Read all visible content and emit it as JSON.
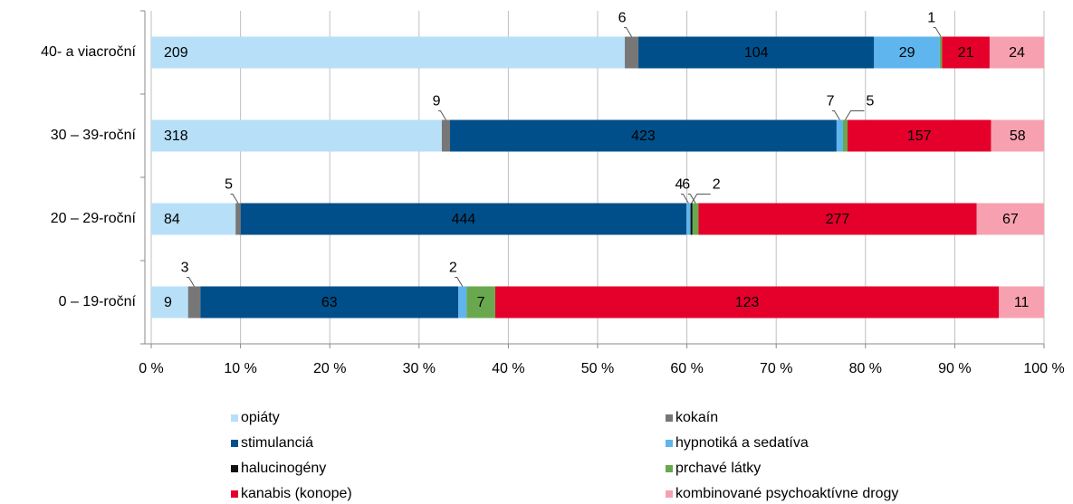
{
  "chart_data": {
    "type": "bar100h",
    "categories": [
      "40- a viacroční",
      "30 – 39-roční",
      "20 – 29-roční",
      "0 – 19-roční"
    ],
    "series": [
      {
        "name": "opiáty",
        "color": "#b7dff8",
        "values": [
          209,
          318,
          84,
          9
        ]
      },
      {
        "name": "kokaín",
        "color": "#777777",
        "values": [
          6,
          9,
          5,
          3
        ]
      },
      {
        "name": "stimulanciá",
        "color": "#004f8a",
        "values": [
          104,
          423,
          444,
          63
        ]
      },
      {
        "name": "hypnotiká a sedatíva",
        "color": "#5fb5ee",
        "values": [
          29,
          7,
          4,
          2
        ]
      },
      {
        "name": "halucinogény",
        "color": "#111111",
        "values": [
          null,
          null,
          2,
          null
        ]
      },
      {
        "name": "prchavé látky",
        "color": "#6aa84f",
        "values": [
          1,
          5,
          6,
          7
        ]
      },
      {
        "name": "kanabis (konope)",
        "color": "#e4002b",
        "values": [
          21,
          157,
          277,
          123
        ]
      },
      {
        "name": "kombinované psychoaktívne drogy",
        "color": "#f7a1b0",
        "values": [
          24,
          58,
          67,
          11
        ]
      }
    ],
    "xlim": [
      0,
      100
    ],
    "xticks": [
      {
        "value": 0,
        "label": "0 %"
      },
      {
        "value": 10,
        "label": "10 %"
      },
      {
        "value": 20,
        "label": "20 %"
      },
      {
        "value": 30,
        "label": "30 %"
      },
      {
        "value": 40,
        "label": "40 %"
      },
      {
        "value": 50,
        "label": "50 %"
      },
      {
        "value": 60,
        "label": "60 %"
      },
      {
        "value": 70,
        "label": "70 %"
      },
      {
        "value": 80,
        "label": "80 %"
      },
      {
        "value": 90,
        "label": "90 %"
      },
      {
        "value": 100,
        "label": "100 %"
      }
    ],
    "grid": true,
    "legend": "bottom"
  }
}
